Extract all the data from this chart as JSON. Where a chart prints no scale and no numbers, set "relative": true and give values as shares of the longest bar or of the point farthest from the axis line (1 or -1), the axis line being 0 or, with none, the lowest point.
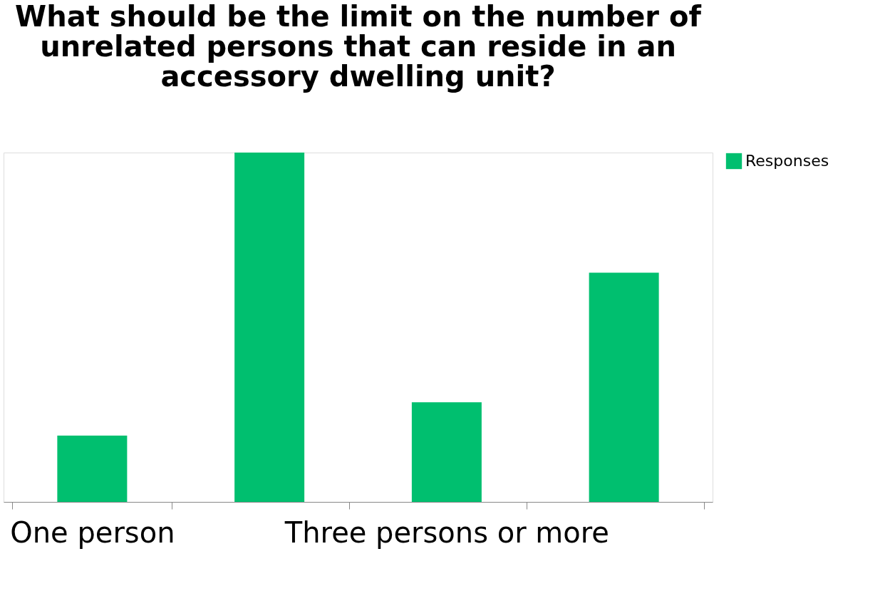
{
  "chart_data": {
    "type": "bar",
    "title": [
      "What should be the limit on the number of",
      "unrelated persons that can reside in an",
      "accessory dwelling unit?"
    ],
    "categories": [
      "One person",
      null,
      "Three persons or more",
      null
    ],
    "series": [
      {
        "name": "Responses",
        "color": "#00bf6f",
        "values": [
          0.19,
          1,
          0.285,
          0.656
        ]
      }
    ],
    "relative": true,
    "legend": "right",
    "grid": false
  }
}
